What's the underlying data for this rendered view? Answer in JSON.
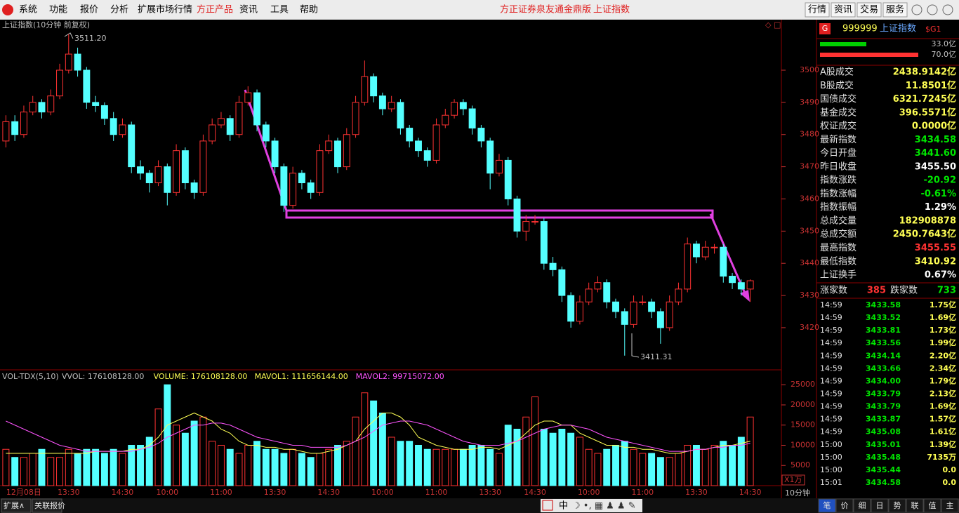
{
  "menu": {
    "items": [
      "系统",
      "功能",
      "报价",
      "分析",
      "扩展市场行情",
      "方正产品",
      "资讯",
      "工具",
      "帮助"
    ],
    "center_title": "方正证券泉友通金鼎版",
    "center_index": "上证指数",
    "buttons": [
      "行情",
      "资讯",
      "交易",
      "服务"
    ]
  },
  "chart_data": {
    "type": "candlestick",
    "title": "上证指数(10分钟 前复权)",
    "period": "10分钟",
    "up_color": "#ff3232",
    "down_color": "#54ffff",
    "categories": [
      null,
      null,
      "12月08日",
      null,
      null,
      null,
      null,
      "13:30",
      null,
      null,
      null,
      null,
      null,
      "14:30",
      null,
      null,
      null,
      null,
      "10:00",
      null,
      null,
      null,
      null,
      null,
      "11:00",
      null,
      null,
      null,
      null,
      null,
      "13:30",
      null,
      null,
      null,
      null,
      null,
      "14:30",
      null,
      null,
      null,
      null,
      null,
      "10:00",
      null,
      null,
      null,
      null,
      null,
      "11:00",
      null,
      null,
      null,
      null,
      null,
      "13:30",
      null,
      null,
      null,
      null,
      "14:30",
      null,
      null,
      null,
      null,
      null,
      "10:00",
      null,
      null,
      null,
      null,
      null,
      "11:00",
      null,
      null,
      null,
      null,
      null,
      "13:30",
      null,
      null,
      null,
      null,
      null,
      "14:30"
    ],
    "candles": [
      [
        3478,
        3486,
        3476,
        3484
      ],
      [
        3484,
        3486,
        3478,
        3480
      ],
      [
        3480,
        3489,
        3479,
        3487
      ],
      [
        3487,
        3492,
        3486,
        3490
      ],
      [
        3490,
        3491,
        3485,
        3487
      ],
      [
        3487,
        3494,
        3486,
        3492
      ],
      [
        3492,
        3502,
        3491,
        3500
      ],
      [
        3500,
        3511.2,
        3499,
        3505
      ],
      [
        3505,
        3507,
        3498,
        3500
      ],
      [
        3500,
        3501,
        3488,
        3490
      ],
      [
        3490,
        3492,
        3487,
        3489
      ],
      [
        3489,
        3490,
        3483,
        3485
      ],
      [
        3485,
        3487,
        3478,
        3480
      ],
      [
        3480,
        3485,
        3479,
        3483
      ],
      [
        3483,
        3484,
        3468,
        3470
      ],
      [
        3470,
        3472,
        3466,
        3468
      ],
      [
        3468,
        3469,
        3462,
        3465
      ],
      [
        3465,
        3472,
        3464,
        3470
      ],
      [
        3470,
        3471,
        3458,
        3462
      ],
      [
        3462,
        3477,
        3461,
        3475
      ],
      [
        3475,
        3476,
        3463,
        3465
      ],
      [
        3465,
        3466,
        3460,
        3462
      ],
      [
        3462,
        3480,
        3461,
        3478
      ],
      [
        3478,
        3485,
        3477,
        3483
      ],
      [
        3483,
        3487,
        3482,
        3485
      ],
      [
        3485,
        3486,
        3478,
        3480
      ],
      [
        3480,
        3492,
        3479,
        3490
      ],
      [
        3490,
        3495,
        3489,
        3493
      ],
      [
        3493,
        3494,
        3481,
        3483
      ],
      [
        3483,
        3484,
        3476,
        3478
      ],
      [
        3478,
        3479,
        3468,
        3470
      ],
      [
        3470,
        3471,
        3456,
        3458
      ],
      [
        3458,
        3470,
        3457,
        3468
      ],
      [
        3468,
        3469,
        3463,
        3465
      ],
      [
        3465,
        3466,
        3460,
        3462
      ],
      [
        3462,
        3477,
        3461,
        3475
      ],
      [
        3475,
        3480,
        3474,
        3478
      ],
      [
        3478,
        3479,
        3468,
        3470
      ],
      [
        3470,
        3482,
        3469,
        3480
      ],
      [
        3480,
        3492,
        3479,
        3490
      ],
      [
        3490,
        3503,
        3489,
        3498
      ],
      [
        3498,
        3499,
        3490,
        3492
      ],
      [
        3492,
        3493,
        3486,
        3488
      ],
      [
        3488,
        3492,
        3487,
        3490
      ],
      [
        3490,
        3491,
        3480,
        3482
      ],
      [
        3482,
        3483,
        3476,
        3478
      ],
      [
        3478,
        3479,
        3473,
        3475
      ],
      [
        3475,
        3476,
        3470,
        3472
      ],
      [
        3472,
        3485,
        3471,
        3483
      ],
      [
        3483,
        3488,
        3482,
        3486
      ],
      [
        3486,
        3491,
        3485,
        3490
      ],
      [
        3490,
        3491,
        3486,
        3488
      ],
      [
        3488,
        3489,
        3480,
        3482
      ],
      [
        3482,
        3483,
        3476,
        3478
      ],
      [
        3478,
        3479,
        3463,
        3468
      ],
      [
        3468,
        3474,
        3467,
        3472
      ],
      [
        3472,
        3473,
        3458,
        3460
      ],
      [
        3460,
        3461,
        3448,
        3450
      ],
      [
        3450,
        3455,
        3447,
        3453
      ],
      [
        3453,
        3455,
        3452,
        3453
      ],
      [
        3453,
        3454,
        3438,
        3440
      ],
      [
        3440,
        3442,
        3436,
        3438
      ],
      [
        3438,
        3439,
        3428,
        3430
      ],
      [
        3430,
        3431,
        3420,
        3422
      ],
      [
        3422,
        3430,
        3421,
        3428
      ],
      [
        3428,
        3434,
        3427,
        3432
      ],
      [
        3432,
        3436,
        3431,
        3434
      ],
      [
        3434,
        3435,
        3426,
        3428
      ],
      [
        3428,
        3429,
        3423,
        3425
      ],
      [
        3425,
        3426,
        3411.31,
        3421
      ],
      [
        3421,
        3430,
        3420,
        3428
      ],
      [
        3428,
        3430,
        3427,
        3428
      ],
      [
        3428,
        3429,
        3423,
        3425
      ],
      [
        3425,
        3426,
        3415,
        3420
      ],
      [
        3420,
        3430,
        3419,
        3428
      ],
      [
        3428,
        3434,
        3427,
        3432
      ],
      [
        3432,
        3448,
        3431,
        3446
      ],
      [
        3446,
        3447,
        3440,
        3442
      ],
      [
        3442,
        3447,
        3441,
        3445
      ],
      [
        3445,
        3446,
        3443,
        3445
      ],
      [
        3445,
        3446,
        3434,
        3436
      ],
      [
        3436,
        3437,
        3432,
        3434
      ],
      [
        3434,
        3435,
        3430,
        3432
      ],
      [
        3432,
        3435,
        3428,
        3434.58
      ]
    ],
    "ylim": [
      3406.9,
      3515.7
    ],
    "yticks": [
      3420,
      3430,
      3440,
      3450,
      3460,
      3470,
      3480,
      3490,
      3500
    ],
    "annotations": [
      "3511.20",
      "3411.31"
    ],
    "volume": {
      "title": "VOL-TDX(5,10)",
      "legend": [
        "VVOL: 176108128.00",
        "VOLUME: 176108128.00",
        "MAVOL1: 111656144.00",
        "MAVOL2: 99715072.00"
      ],
      "unit": "X1万",
      "mavol1_color": "#ffff54",
      "mavol2_color": "#ff54ff",
      "ylim": [
        0,
        27300
      ],
      "yticks": [
        5000,
        10000,
        15000,
        20000,
        25000
      ],
      "values": [
        9000,
        7000,
        7000,
        8000,
        9000,
        7000,
        7000,
        9000,
        8000,
        9000,
        9000,
        8000,
        9000,
        8000,
        10000,
        10000,
        12000,
        19000,
        25000,
        15000,
        13000,
        16000,
        17000,
        11000,
        10000,
        9000,
        8000,
        10000,
        11000,
        9000,
        9000,
        8000,
        9000,
        8000,
        7000,
        8000,
        9000,
        10000,
        11000,
        17000,
        23000,
        21000,
        18000,
        12000,
        11000,
        11000,
        10000,
        9000,
        9000,
        9000,
        9000,
        9000,
        10000,
        10000,
        9000,
        8000,
        15000,
        14000,
        17000,
        22000,
        14000,
        13000,
        14000,
        13000,
        12000,
        9000,
        8000,
        9000,
        10000,
        11000,
        9000,
        8000,
        8000,
        7000,
        7000,
        8000,
        10000,
        10000,
        9000,
        10000,
        11000,
        10000,
        12000,
        17000
      ],
      "mavol1": [
        8000,
        8000,
        8000,
        8000,
        8000,
        8000,
        8000,
        8000,
        8000,
        8000,
        8500,
        8500,
        8500,
        8500,
        9000,
        9000,
        10000,
        12000,
        15000,
        16000,
        17000,
        18000,
        17000,
        16000,
        14000,
        13000,
        11000,
        10000,
        10000,
        9500,
        9500,
        9000,
        9000,
        8500,
        8000,
        8000,
        8500,
        9000,
        10000,
        11000,
        14000,
        16000,
        18000,
        18000,
        17000,
        15000,
        12000,
        11000,
        10000,
        9500,
        9000,
        9000,
        9000,
        9500,
        9500,
        9000,
        10000,
        11000,
        13000,
        15000,
        16000,
        16000,
        15000,
        15000,
        13000,
        12000,
        11000,
        10000,
        10000,
        9500,
        9500,
        9000,
        9000,
        8500,
        8000,
        8000,
        8500,
        9000,
        9000,
        9500,
        10000,
        10000,
        10500,
        11000
      ],
      "mavol2": [
        16000,
        15000,
        14000,
        13000,
        12000,
        11000,
        10000,
        9500,
        9000,
        8500,
        8500,
        8500,
        8500,
        8500,
        8500,
        9000,
        9500,
        10500,
        12000,
        13000,
        14000,
        15000,
        15000,
        15500,
        15500,
        15000,
        14000,
        13000,
        12000,
        11500,
        11000,
        10500,
        10000,
        10000,
        9500,
        9500,
        9500,
        9500,
        10000,
        11000,
        12000,
        13500,
        15000,
        15500,
        16000,
        16000,
        15500,
        15000,
        14000,
        13000,
        12000,
        11000,
        10500,
        10000,
        10000,
        10000,
        10500,
        11000,
        12000,
        13000,
        14000,
        14500,
        15000,
        15000,
        14500,
        14000,
        13000,
        12000,
        11500,
        11000,
        10500,
        10000,
        9500,
        9000,
        8500,
        8500,
        8500,
        9000,
        9000,
        9500,
        9500,
        10000,
        10000,
        10500
      ]
    }
  },
  "panel": {
    "badge": "G",
    "code": "999999",
    "name": "上证指数",
    "tag": "$G1",
    "bars": {
      "values": [
        33.0,
        70.0
      ],
      "value_labels": [
        "33.0亿",
        "70.0亿"
      ],
      "colors": [
        "#00d000",
        "#ff3232"
      ]
    },
    "rows": [
      {
        "label": "A股成交",
        "value": "2438.9142亿",
        "color": "#ffff54"
      },
      {
        "label": "B股成交",
        "value": "11.8501亿",
        "color": "#ffff54"
      },
      {
        "label": "国债成交",
        "value": "6321.7245亿",
        "color": "#ffff54"
      },
      {
        "label": "基金成交",
        "value": "396.5571亿",
        "color": "#ffff54"
      },
      {
        "label": "权证成交",
        "value": "0.0000亿",
        "color": "#ffff54"
      },
      {
        "label": "最新指数",
        "value": "3434.58",
        "color": "#00e600"
      },
      {
        "label": "今日开盘",
        "value": "3441.60",
        "color": "#00e600"
      },
      {
        "label": "昨日收盘",
        "value": "3455.50",
        "color": "#ffffff"
      },
      {
        "label": "指数涨跌",
        "value": "-20.92",
        "color": "#00e600"
      },
      {
        "label": "指数涨幅",
        "value": "-0.61%",
        "color": "#00e600"
      },
      {
        "label": "指数振幅",
        "value": "1.29%",
        "color": "#ffffff"
      },
      {
        "label": "总成交量",
        "value": "182908878",
        "color": "#ffff54"
      },
      {
        "label": "总成交额",
        "value": "2450.7643亿",
        "color": "#ffff54"
      },
      {
        "label": "最高指数",
        "value": "3455.55",
        "color": "#ff3232"
      },
      {
        "label": "最低指数",
        "value": "3410.92",
        "color": "#ffff54"
      },
      {
        "label": "上证换手",
        "value": "0.67%",
        "color": "#ffffff"
      }
    ],
    "breadth": {
      "up_label": "涨家数",
      "up": "385",
      "down_label": "跌家数",
      "down": "733"
    },
    "ticks": [
      [
        "14:59",
        "3433.58",
        "1.75亿"
      ],
      [
        "14:59",
        "3433.52",
        "1.69亿"
      ],
      [
        "14:59",
        "3433.81",
        "1.73亿"
      ],
      [
        "14:59",
        "3433.56",
        "1.99亿"
      ],
      [
        "14:59",
        "3434.14",
        "2.20亿"
      ],
      [
        "14:59",
        "3433.66",
        "2.34亿"
      ],
      [
        "14:59",
        "3434.00",
        "1.79亿"
      ],
      [
        "14:59",
        "3433.79",
        "2.13亿"
      ],
      [
        "14:59",
        "3433.79",
        "1.69亿"
      ],
      [
        "14:59",
        "3433.87",
        "1.57亿"
      ],
      [
        "14:59",
        "3435.08",
        "1.61亿"
      ],
      [
        "15:00",
        "3435.01",
        "1.39亿"
      ],
      [
        "15:00",
        "3435.48",
        "7135万"
      ],
      [
        "15:00",
        "3435.44",
        "0.0"
      ],
      [
        "15:01",
        "3434.58",
        "0.0"
      ]
    ]
  },
  "footer": {
    "tabs": [
      "扩展∧",
      "关联报价"
    ],
    "tool": "中",
    "right_tabs": [
      "笔",
      "价",
      "细",
      "日",
      "势",
      "联",
      "值",
      "主"
    ]
  }
}
